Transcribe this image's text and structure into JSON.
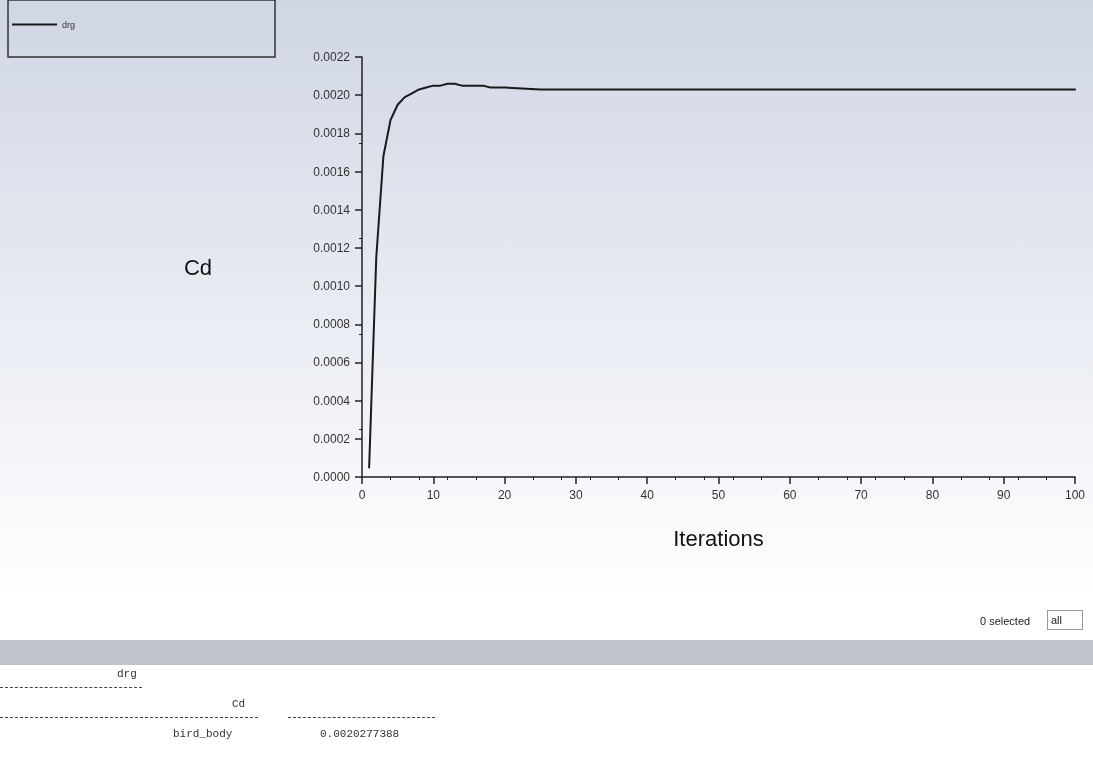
{
  "chart_data": {
    "type": "line",
    "xlabel": "Iterations",
    "ylabel": "Cd",
    "x": [
      1,
      2,
      3,
      4,
      5,
      6,
      7,
      8,
      9,
      10,
      11,
      12,
      13,
      14,
      15,
      16,
      17,
      18,
      19,
      20,
      25,
      30,
      40,
      50,
      60,
      70,
      80,
      90,
      100
    ],
    "series": [
      {
        "name": "drg",
        "color": "#1a1a1a",
        "values": [
          5e-05,
          0.00115,
          0.00168,
          0.00187,
          0.00195,
          0.00199,
          0.00201,
          0.00203,
          0.00204,
          0.00205,
          0.00205,
          0.00206,
          0.00206,
          0.00205,
          0.00205,
          0.00205,
          0.00205,
          0.00204,
          0.00204,
          0.00204,
          0.00203,
          0.00203,
          0.00203,
          0.00203,
          0.00203,
          0.00203,
          0.00203,
          0.00203,
          0.00203
        ]
      }
    ],
    "xlim": [
      0,
      100
    ],
    "xticks": [
      0,
      10,
      20,
      30,
      40,
      50,
      60,
      70,
      80,
      90,
      100
    ],
    "ylim": [
      0,
      0.0022
    ],
    "yticks": [
      {
        "value": 0,
        "label": "0.0000"
      },
      {
        "value": 0.0002,
        "label": "0.0002"
      },
      {
        "value": 0.0004,
        "label": "0.0004"
      },
      {
        "value": 0.0006,
        "label": "0.0006"
      },
      {
        "value": 0.0008,
        "label": "0.0008"
      },
      {
        "value": 0.001,
        "label": "0.0010"
      },
      {
        "value": 0.0012,
        "label": "0.0012"
      },
      {
        "value": 0.0014,
        "label": "0.0014"
      },
      {
        "value": 0.0016,
        "label": "0.0016"
      },
      {
        "value": 0.0018,
        "label": "0.0018"
      },
      {
        "value": 0.002,
        "label": "0.0020"
      },
      {
        "value": 0.0022,
        "label": "0.0022"
      }
    ],
    "grid": false,
    "legend": "top left",
    "marker": "none",
    "line_style": "solid",
    "annotations": [
      "0 selected",
      "all",
      "drg",
      "Cd",
      "bird_body",
      "0.0020277388"
    ]
  }
}
